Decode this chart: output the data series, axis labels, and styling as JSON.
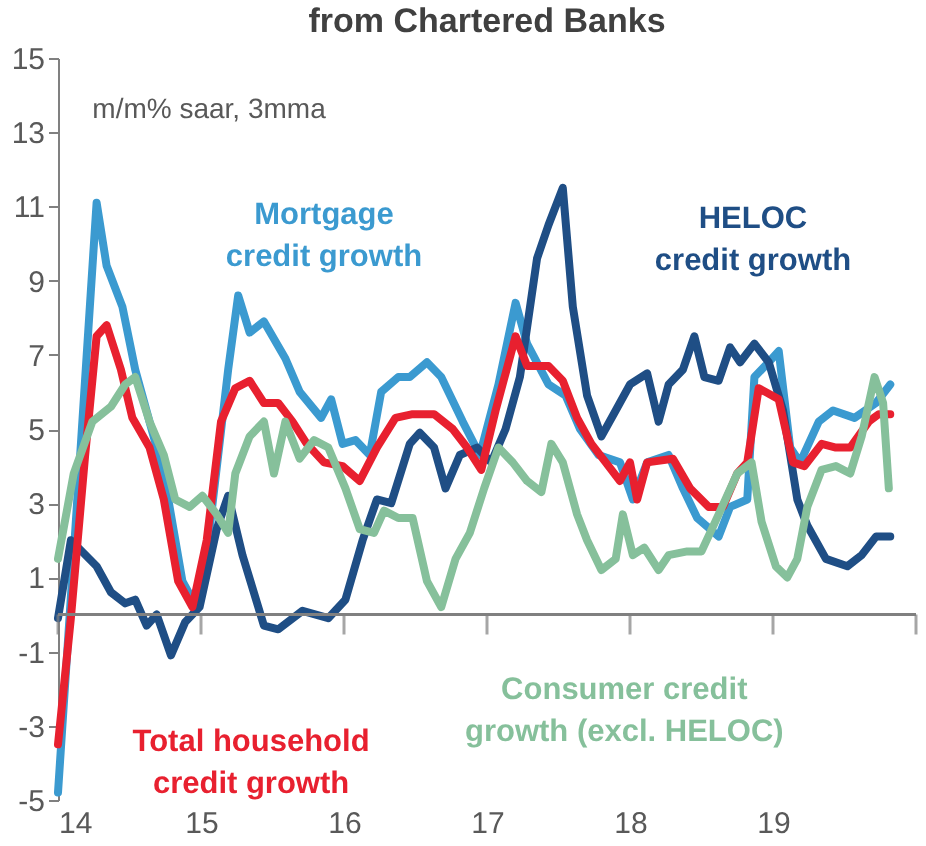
{
  "chart_data": {
    "type": "line",
    "title": "from Chartered Banks",
    "annotations": [
      "m/m% saar, 3mma"
    ],
    "xlim": [
      14,
      20
    ],
    "xticks": [
      14,
      15,
      16,
      17,
      18,
      19,
      {
        "value": 20,
        "label": null
      }
    ],
    "ylim": [
      -5,
      15
    ],
    "yticks": [
      -5,
      -3,
      -1,
      1,
      3,
      5,
      7,
      9,
      11,
      13,
      15
    ],
    "ref_lines": [
      {
        "axis": "y",
        "value": 0,
        "color": "#808080"
      }
    ],
    "series": [
      {
        "name": "Mortgage credit growth",
        "color": "#3b9ad0",
        "x": [
          14.0,
          14.14,
          14.27,
          14.34,
          14.45,
          14.54,
          14.64,
          14.74,
          14.87,
          14.97,
          15.06,
          15.19,
          15.26,
          15.34,
          15.44,
          15.59,
          15.69,
          15.84,
          15.91,
          15.99,
          16.08,
          16.18,
          16.26,
          16.38,
          16.46,
          16.58,
          16.68,
          16.83,
          16.95,
          17.08,
          17.2,
          17.28,
          17.43,
          17.55,
          17.65,
          17.78,
          17.93,
          18.02,
          18.12,
          18.27,
          18.37,
          18.47,
          18.62,
          18.7,
          18.82,
          18.87,
          18.97,
          19.04,
          19.12,
          19.19,
          19.32,
          19.42,
          19.57,
          19.72,
          19.82
        ],
        "values": [
          -4.8,
          3.4,
          11.1,
          9.4,
          8.3,
          6.6,
          5.2,
          3.8,
          0.9,
          0.2,
          2.3,
          6.6,
          8.6,
          7.6,
          7.9,
          6.9,
          6.0,
          5.3,
          5.8,
          4.6,
          4.7,
          4.3,
          6.0,
          6.4,
          6.4,
          6.8,
          6.4,
          5.2,
          4.3,
          6.2,
          8.4,
          7.3,
          6.2,
          5.9,
          5.0,
          4.3,
          4.1,
          3.1,
          4.1,
          4.3,
          3.4,
          2.6,
          2.1,
          2.9,
          3.1,
          6.4,
          6.8,
          7.1,
          4.5,
          4.1,
          5.2,
          5.5,
          5.3,
          5.7,
          6.2
        ]
      },
      {
        "name": "HELOC credit growth",
        "color": "#1f4e85",
        "x": [
          14.0,
          14.09,
          14.27,
          14.37,
          14.47,
          14.54,
          14.62,
          14.69,
          14.79,
          14.89,
          14.99,
          15.11,
          15.19,
          15.29,
          15.44,
          15.54,
          15.71,
          15.89,
          16.01,
          16.13,
          16.23,
          16.33,
          16.46,
          16.53,
          16.63,
          16.71,
          16.81,
          16.93,
          17.03,
          17.13,
          17.23,
          17.35,
          17.43,
          17.53,
          17.6,
          17.7,
          17.8,
          17.9,
          18.0,
          18.12,
          18.2,
          18.27,
          18.37,
          18.45,
          18.52,
          18.62,
          18.7,
          18.77,
          18.87,
          18.97,
          19.07,
          19.17,
          19.24,
          19.37,
          19.52,
          19.62,
          19.72,
          19.82
        ],
        "values": [
          -0.1,
          2.0,
          1.3,
          0.6,
          0.3,
          0.4,
          -0.3,
          0,
          -1.1,
          -0.2,
          0.2,
          2.3,
          3.2,
          1.6,
          -0.3,
          -0.4,
          0.1,
          -0.1,
          0.4,
          2.0,
          3.1,
          3.0,
          4.6,
          4.9,
          4.5,
          3.4,
          4.3,
          4.5,
          4.1,
          5.0,
          6.4,
          9.6,
          10.5,
          11.5,
          8.3,
          5.9,
          4.8,
          5.5,
          6.2,
          6.5,
          5.2,
          6.2,
          6.6,
          7.5,
          6.4,
          6.3,
          7.2,
          6.8,
          7.3,
          6.8,
          5.5,
          3.1,
          2.4,
          1.5,
          1.3,
          1.6,
          2.1,
          2.1
        ]
      },
      {
        "name": "Total household credit growth",
        "color": "#e8202f",
        "x": [
          14.0,
          14.09,
          14.19,
          14.27,
          14.34,
          14.44,
          14.52,
          14.64,
          14.74,
          14.84,
          14.94,
          15.04,
          15.14,
          15.24,
          15.34,
          15.44,
          15.54,
          15.64,
          15.74,
          15.86,
          15.99,
          16.11,
          16.23,
          16.36,
          16.48,
          16.63,
          16.76,
          16.86,
          16.96,
          17.06,
          17.2,
          17.28,
          17.43,
          17.53,
          17.63,
          17.73,
          17.83,
          17.93,
          18.0,
          18.05,
          18.12,
          18.3,
          18.42,
          18.55,
          18.65,
          18.75,
          18.82,
          18.9,
          19.04,
          19.14,
          19.22,
          19.34,
          19.44,
          19.54,
          19.67,
          19.74,
          19.82
        ],
        "values": [
          -3.5,
          -0.1,
          4.3,
          7.5,
          7.8,
          6.6,
          5.3,
          4.5,
          3.1,
          0.9,
          0.2,
          2.0,
          5.2,
          6.1,
          6.3,
          5.7,
          5.7,
          5.2,
          4.6,
          4.1,
          4.0,
          3.6,
          4.5,
          5.3,
          5.4,
          5.4,
          5.0,
          4.5,
          3.9,
          5.5,
          7.5,
          6.7,
          6.7,
          6.3,
          5.3,
          4.6,
          4.1,
          3.6,
          4.1,
          3.1,
          4.1,
          4.2,
          3.4,
          2.9,
          2.9,
          3.8,
          4.1,
          6.1,
          5.8,
          4.1,
          4.0,
          4.6,
          4.5,
          4.5,
          5.2,
          5.4,
          5.4
        ]
      },
      {
        "name": "Consumer credit growth (excl. HELOC)",
        "color": "#86c09b",
        "x": [
          14.0,
          14.11,
          14.24,
          14.37,
          14.47,
          14.54,
          14.64,
          14.74,
          14.82,
          14.92,
          15.01,
          15.11,
          15.19,
          15.24,
          15.34,
          15.44,
          15.51,
          15.59,
          15.69,
          15.79,
          15.89,
          16.01,
          16.11,
          16.21,
          16.28,
          16.38,
          16.48,
          16.58,
          16.68,
          16.78,
          16.88,
          16.98,
          17.08,
          17.18,
          17.28,
          17.38,
          17.45,
          17.53,
          17.63,
          17.7,
          17.8,
          17.9,
          17.95,
          18.02,
          18.1,
          18.2,
          18.27,
          18.4,
          18.5,
          18.62,
          18.75,
          18.85,
          18.92,
          19.02,
          19.1,
          19.17,
          19.24,
          19.34,
          19.44,
          19.54,
          19.62,
          19.71,
          19.77,
          19.81
        ],
        "values": [
          1.5,
          3.8,
          5.2,
          5.6,
          6.2,
          6.4,
          5.2,
          4.3,
          3.1,
          2.9,
          3.2,
          2.7,
          2.2,
          3.8,
          4.8,
          5.2,
          3.8,
          5.2,
          4.2,
          4.7,
          4.5,
          3.4,
          2.3,
          2.2,
          2.8,
          2.6,
          2.6,
          0.9,
          0.2,
          1.5,
          2.2,
          3.4,
          4.5,
          4.1,
          3.6,
          3.3,
          4.6,
          4.1,
          2.7,
          2.0,
          1.2,
          1.5,
          2.7,
          1.6,
          1.8,
          1.2,
          1.6,
          1.7,
          1.7,
          2.7,
          3.8,
          4.1,
          2.5,
          1.3,
          1.0,
          1.5,
          2.9,
          3.9,
          4.0,
          3.8,
          4.8,
          6.4,
          5.7,
          3.4
        ]
      }
    ]
  }
}
